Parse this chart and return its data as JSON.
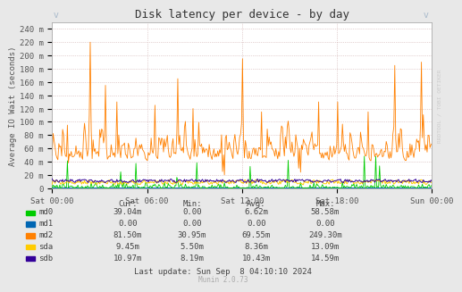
{
  "title": "Disk latency per device - by day",
  "ylabel": "Average IO Wait (seconds)",
  "fig_bg_color": "#E8E8E8",
  "plot_bg_color": "#FFFFFF",
  "grid_color": "#CCAAAA",
  "ylim": [
    0,
    250
  ],
  "yticks": [
    0,
    20,
    40,
    60,
    80,
    100,
    120,
    140,
    160,
    180,
    200,
    220,
    240
  ],
  "ytick_labels": [
    "0",
    "20 m",
    "40 m",
    "60 m",
    "80 m",
    "100 m",
    "120 m",
    "140 m",
    "160 m",
    "180 m",
    "200 m",
    "220 m",
    "240 m"
  ],
  "xtick_labels": [
    "Sat 00:00",
    "Sat 06:00",
    "Sat 12:00",
    "Sat 18:00",
    "Sun 00:00"
  ],
  "series": {
    "md0": {
      "color": "#00CC00"
    },
    "md1": {
      "color": "#0066B3"
    },
    "md2": {
      "color": "#FF8000"
    },
    "sda": {
      "color": "#FFCC00"
    },
    "sdb": {
      "color": "#330099"
    }
  },
  "legend": [
    {
      "label": "md0",
      "color": "#00CC00"
    },
    {
      "label": "md1",
      "color": "#0066B3"
    },
    {
      "label": "md2",
      "color": "#FF8000"
    },
    {
      "label": "sda",
      "color": "#FFCC00"
    },
    {
      "label": "sdb",
      "color": "#330099"
    }
  ],
  "table_headers": [
    "Cur:",
    "Min:",
    "Avg:",
    "Max:"
  ],
  "table_data": [
    [
      "md0",
      "39.04m",
      "0.00",
      "6.62m",
      "58.58m"
    ],
    [
      "md1",
      "0.00",
      "0.00",
      "0.00",
      "0.00"
    ],
    [
      "md2",
      "81.50m",
      "30.95m",
      "69.55m",
      "249.30m"
    ],
    [
      "sda",
      "9.45m",
      "5.50m",
      "8.36m",
      "13.09m"
    ],
    [
      "sdb",
      "10.97m",
      "8.19m",
      "10.43m",
      "14.59m"
    ]
  ],
  "last_update": "Last update: Sun Sep  8 04:10:10 2024",
  "munin_version": "Munin 2.0.73",
  "watermark": "RRDTOOL / TOBI OETIKER",
  "n_points": 400
}
